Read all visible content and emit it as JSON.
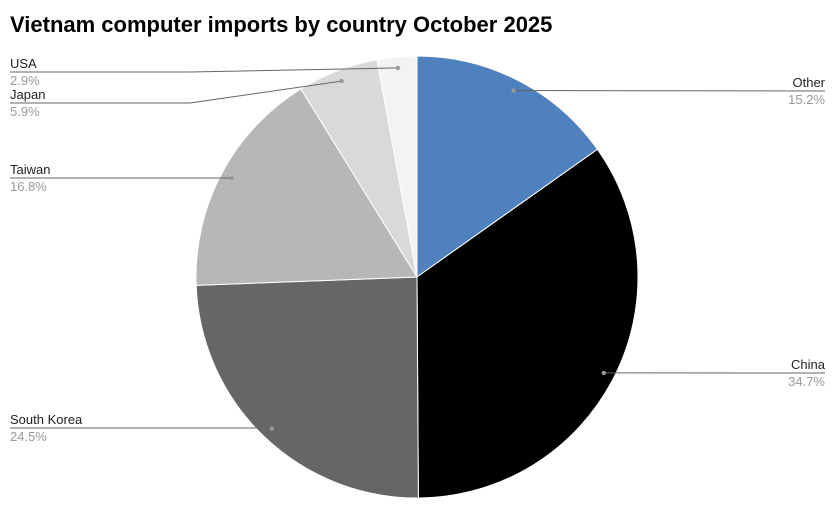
{
  "chart_data": {
    "type": "pie",
    "title": "Vietnam computer imports  by country October 2025",
    "start_angle": "top, clockwise",
    "slices": [
      {
        "label": "Other",
        "value": 15.2,
        "display": "15.2%",
        "color": "#4e81bd"
      },
      {
        "label": "China",
        "value": 34.7,
        "display": "34.7%",
        "color": "#000000"
      },
      {
        "label": "South Korea",
        "value": 24.5,
        "display": "24.5%",
        "color": "#666666"
      },
      {
        "label": "Taiwan",
        "value": 16.8,
        "display": "16.8%",
        "color": "#b7b7b7"
      },
      {
        "label": "Japan",
        "value": 5.9,
        "display": "5.9%",
        "color": "#d9d9d9"
      },
      {
        "label": "USA",
        "value": 2.9,
        "display": "2.9%",
        "color": "#f3f3f3"
      }
    ]
  }
}
